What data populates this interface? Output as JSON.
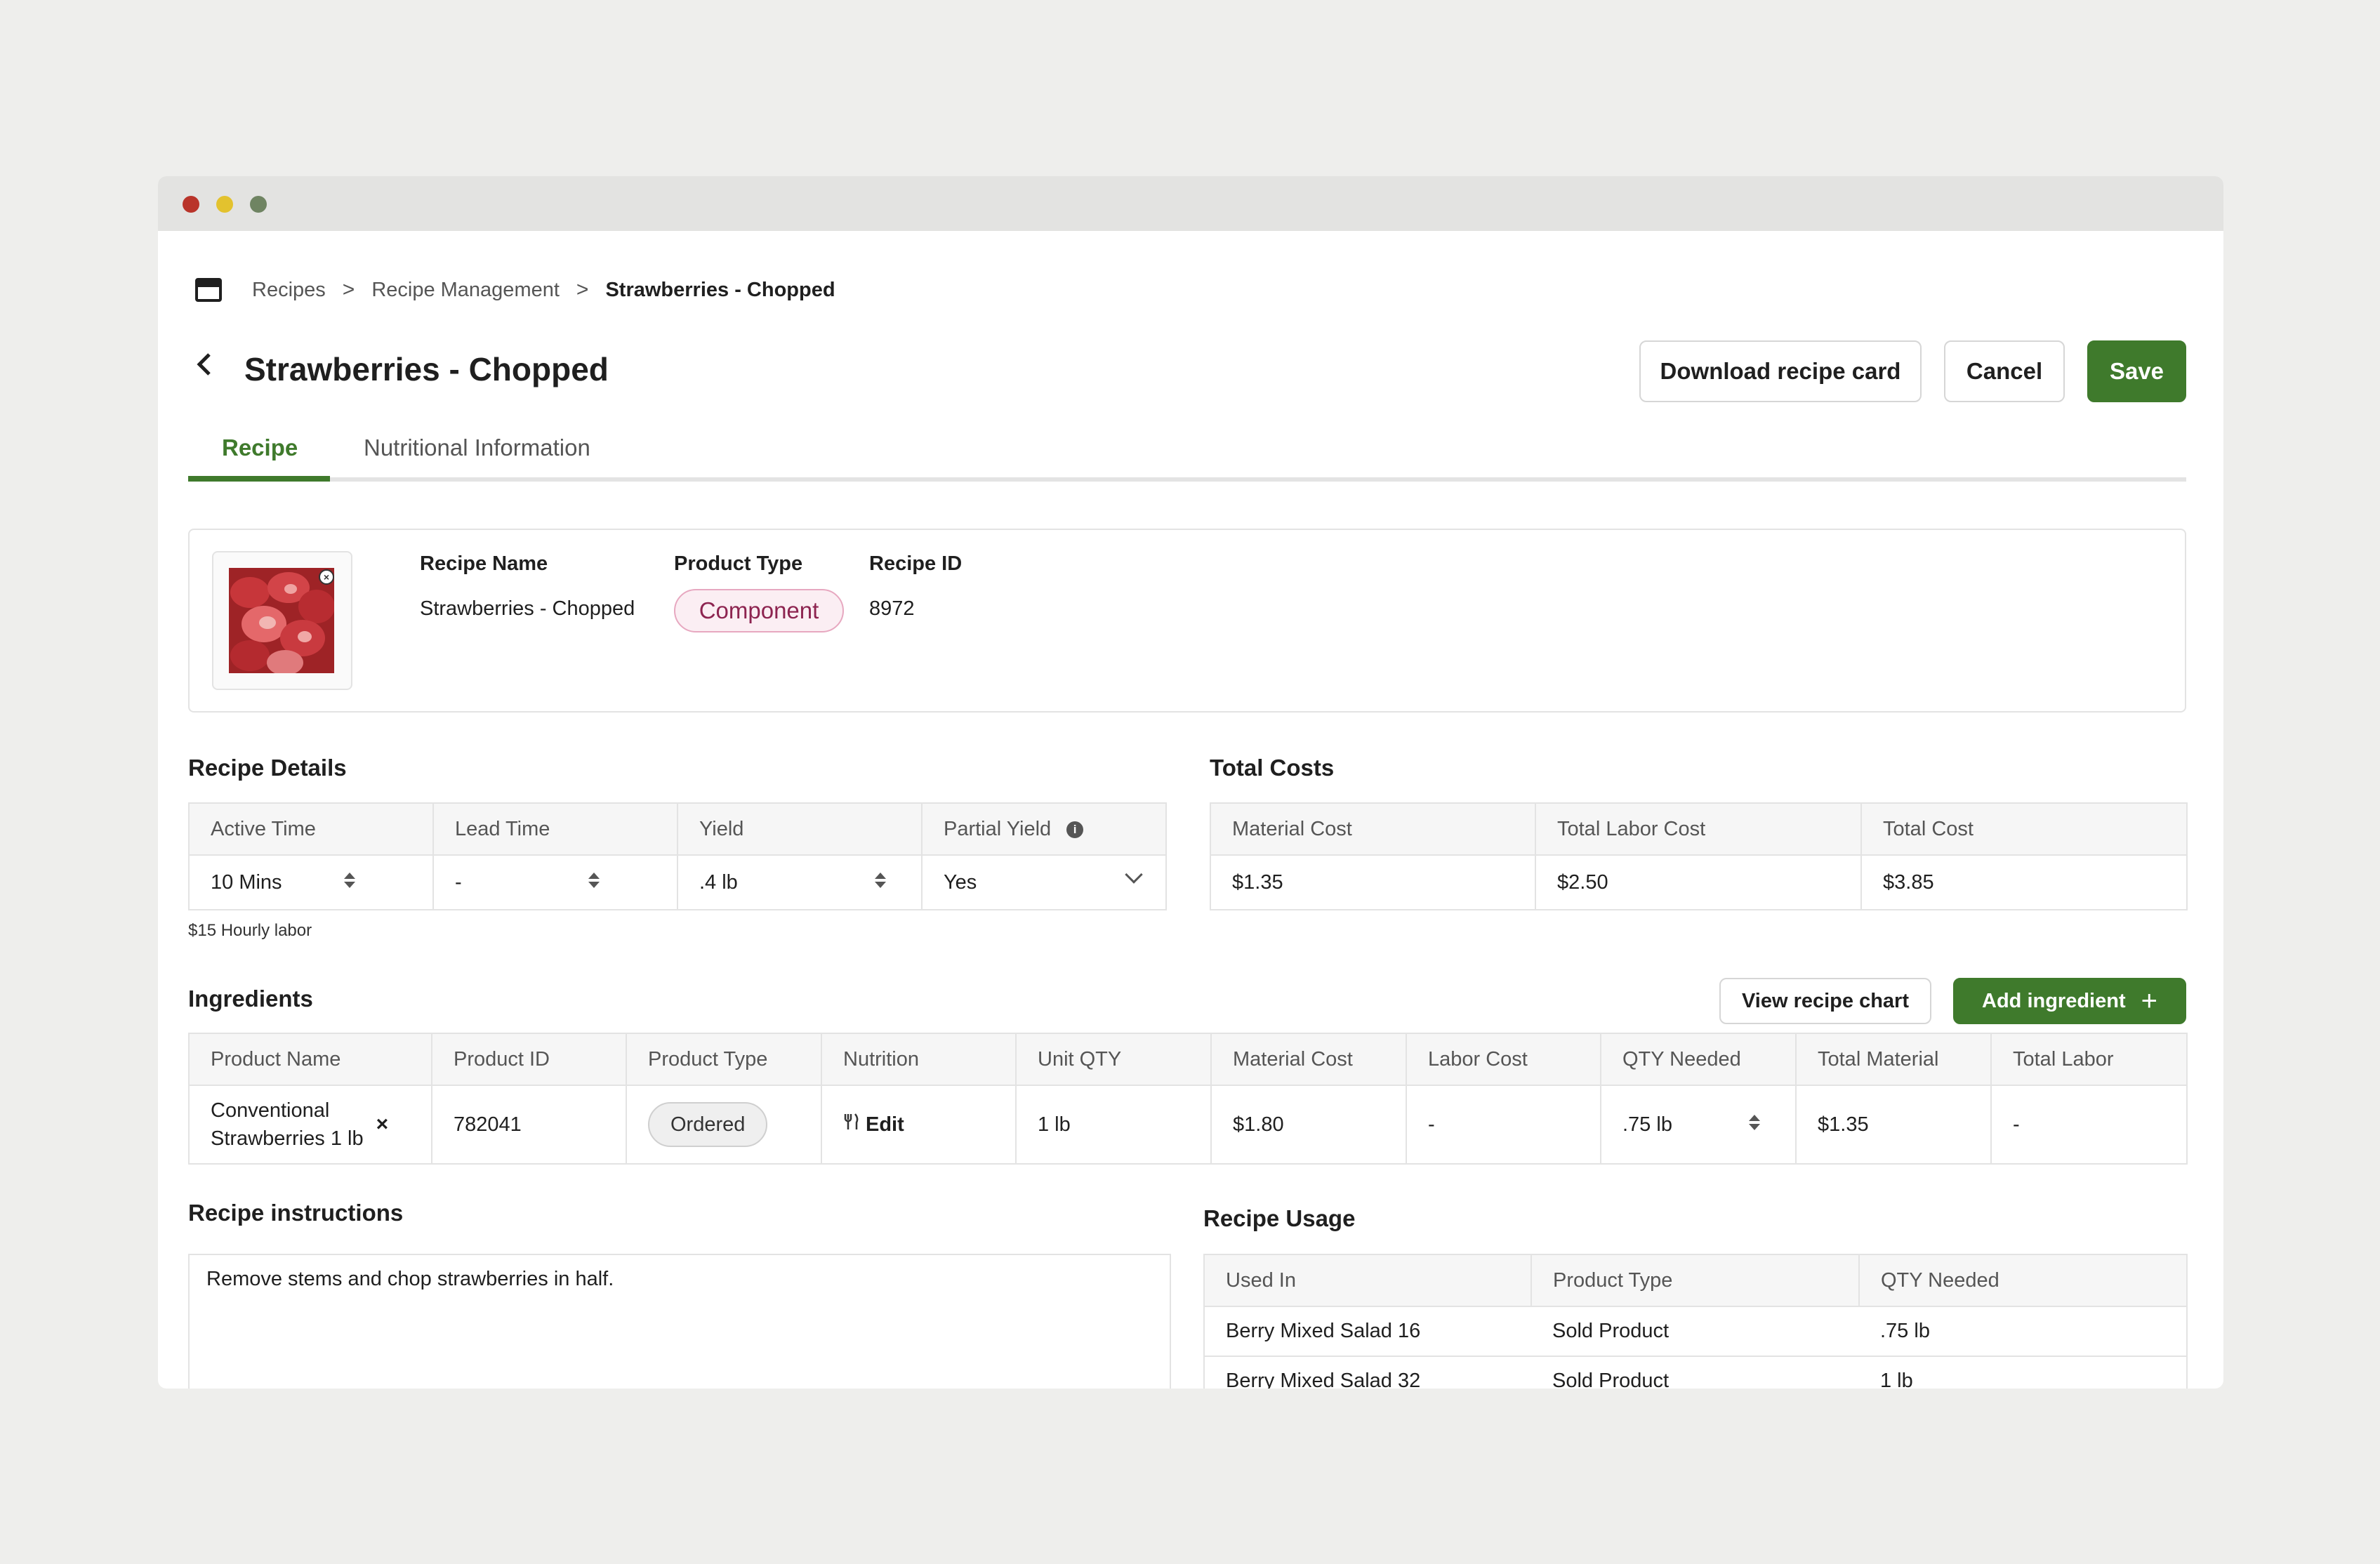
{
  "breadcrumb": {
    "items": [
      "Recipes",
      "Recipe Management"
    ],
    "current": "Strawberries - Chopped",
    "separator": ">"
  },
  "header": {
    "title": "Strawberries - Chopped",
    "back_icon": "chevron-left-icon",
    "download_label": "Download recipe card",
    "cancel_label": "Cancel",
    "save_label": "Save"
  },
  "tabs": [
    {
      "label": "Recipe",
      "active": true
    },
    {
      "label": "Nutritional Information",
      "active": false
    }
  ],
  "summary": {
    "recipe_name_label": "Recipe Name",
    "recipe_name": "Strawberries - Chopped",
    "product_type_label": "Product Type",
    "product_type": "Component",
    "recipe_id_label": "Recipe ID",
    "recipe_id": "8972"
  },
  "recipe_details": {
    "title": "Recipe Details",
    "headers": [
      "Active Time",
      "Lead Time",
      "Yield",
      "Partial Yield"
    ],
    "values": [
      "10 Mins",
      "-",
      ".4 lb",
      "Yes"
    ],
    "note": "$15 Hourly labor"
  },
  "total_costs": {
    "title": "Total Costs",
    "headers": [
      "Material Cost",
      "Total Labor Cost",
      "Total Cost"
    ],
    "values": [
      "$1.35",
      "$2.50",
      "$3.85"
    ]
  },
  "ingredients": {
    "title": "Ingredients",
    "view_chart_label": "View recipe chart",
    "add_label": "Add ingredient",
    "headers": [
      "Product Name",
      "Product ID",
      "Product Type",
      "Nutrition",
      "Unit QTY",
      "Material Cost",
      "Labor Cost",
      "QTY Needed",
      "Total Material",
      "Total Labor"
    ],
    "rows": [
      {
        "product_name_1": "Conventional",
        "product_name_2": "Strawberries 1 lb",
        "remove": "×",
        "product_id": "782041",
        "product_type": "Ordered",
        "nutrition": "Edit",
        "unit_qty": "1 lb",
        "material_cost": "$1.80",
        "labor_cost": "-",
        "qty_needed": ".75 lb",
        "total_material": "$1.35",
        "total_labor": "-"
      }
    ]
  },
  "instructions": {
    "title": "Recipe instructions",
    "text": "Remove stems and chop strawberries in half."
  },
  "usage": {
    "title": "Recipe Usage",
    "headers": [
      "Used In",
      "Product Type",
      "QTY Needed"
    ],
    "rows": [
      {
        "used_in": "Berry Mixed Salad 16",
        "product_type": "Sold Product",
        "qty": ".75 lb"
      },
      {
        "used_in": "Berry Mixed Salad 32",
        "product_type": "Sold Product",
        "qty": "1 lb"
      }
    ]
  },
  "colors": {
    "accent": "#3f7a2c",
    "component_pill_bg": "#fbeef3",
    "component_pill_text": "#8d2450",
    "window_close": "#b9342a",
    "window_minimize": "#e3c22e",
    "window_zoom": "#6f8462"
  }
}
